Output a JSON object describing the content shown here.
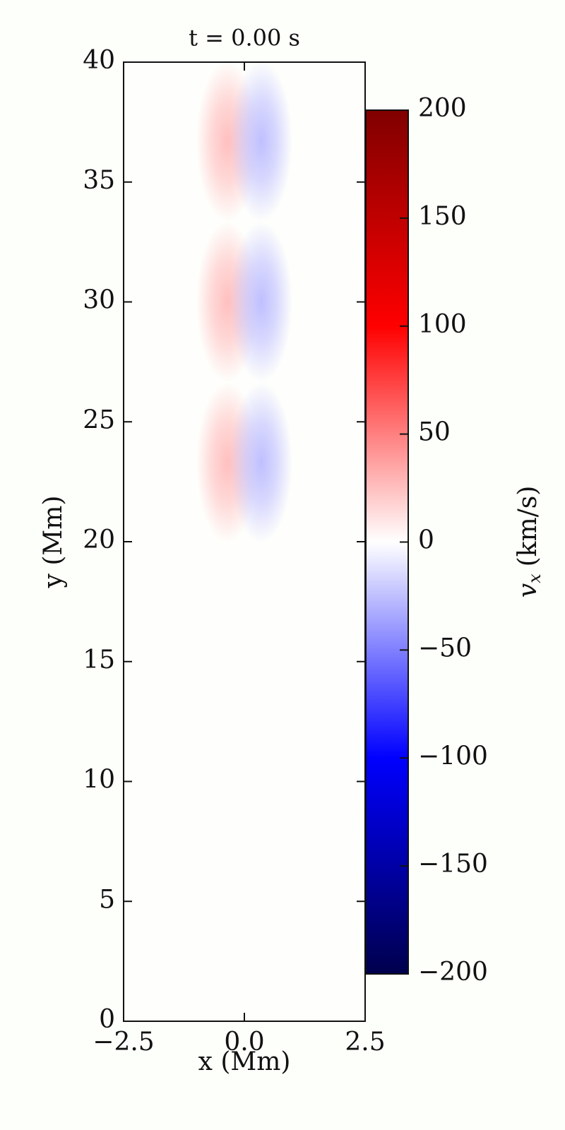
{
  "chart_data": {
    "type": "heatmap",
    "title": "t = 0.00 s",
    "x_label": "x (Mm)",
    "y_label": "y (Mm)",
    "xlim": [
      -2.5,
      2.5
    ],
    "xticks": [
      {
        "value": -2.5,
        "label": "−2.5"
      },
      {
        "value": 0,
        "label": "0.0"
      },
      2.5
    ],
    "ylim": [
      0,
      40
    ],
    "yticks": [
      0,
      5,
      10,
      15,
      20,
      25,
      30,
      35,
      40
    ],
    "colormap": "seismic",
    "clim": [
      -200,
      200
    ],
    "cticks": [
      {
        "value": -200,
        "label": "−200"
      },
      {
        "value": -150,
        "label": "−150"
      },
      {
        "value": -100,
        "label": "−100"
      },
      {
        "value": -50,
        "label": "−50"
      },
      0,
      50,
      100,
      150,
      200
    ],
    "colorbar_label": {
      "symbol": "v",
      "subscript": "x",
      "unit": "(km/s)"
    },
    "sigma_x": 0.25,
    "sigma_y": 1.3,
    "blobs": [
      {
        "x": -0.35,
        "y": 36.7,
        "value": 25
      },
      {
        "x": 0.35,
        "y": 36.7,
        "value": -25
      },
      {
        "x": -0.35,
        "y": 30,
        "value": 25
      },
      {
        "x": 0.35,
        "y": 30,
        "value": -25
      },
      {
        "x": -0.35,
        "y": 23.3,
        "value": 25
      },
      {
        "x": 0.35,
        "y": 23.3,
        "value": -25
      }
    ]
  }
}
